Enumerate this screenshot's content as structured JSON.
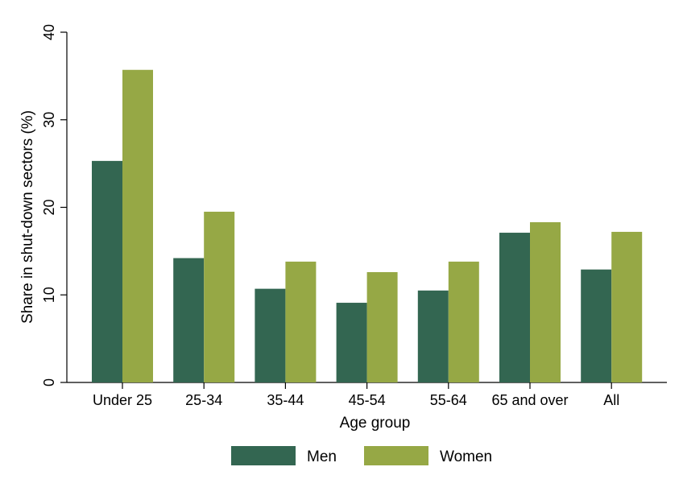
{
  "chart_data": {
    "type": "bar",
    "title": "",
    "xlabel": "Age group",
    "ylabel": "Share in shut-down sectors (%)",
    "ylim": [
      0,
      40
    ],
    "yticks": [
      0,
      10,
      20,
      30,
      40
    ],
    "grid": false,
    "legend_position": "bottom",
    "categories": [
      "Under 25",
      "25-34",
      "35-44",
      "45-54",
      "55-64",
      "65 and over",
      "All"
    ],
    "series": [
      {
        "name": "Men",
        "color": "#336651",
        "values": [
          25.3,
          14.2,
          10.7,
          9.1,
          10.5,
          17.1,
          12.9
        ]
      },
      {
        "name": "Women",
        "color": "#96a845",
        "values": [
          35.7,
          19.5,
          13.8,
          12.6,
          13.8,
          18.3,
          17.2
        ]
      }
    ]
  }
}
